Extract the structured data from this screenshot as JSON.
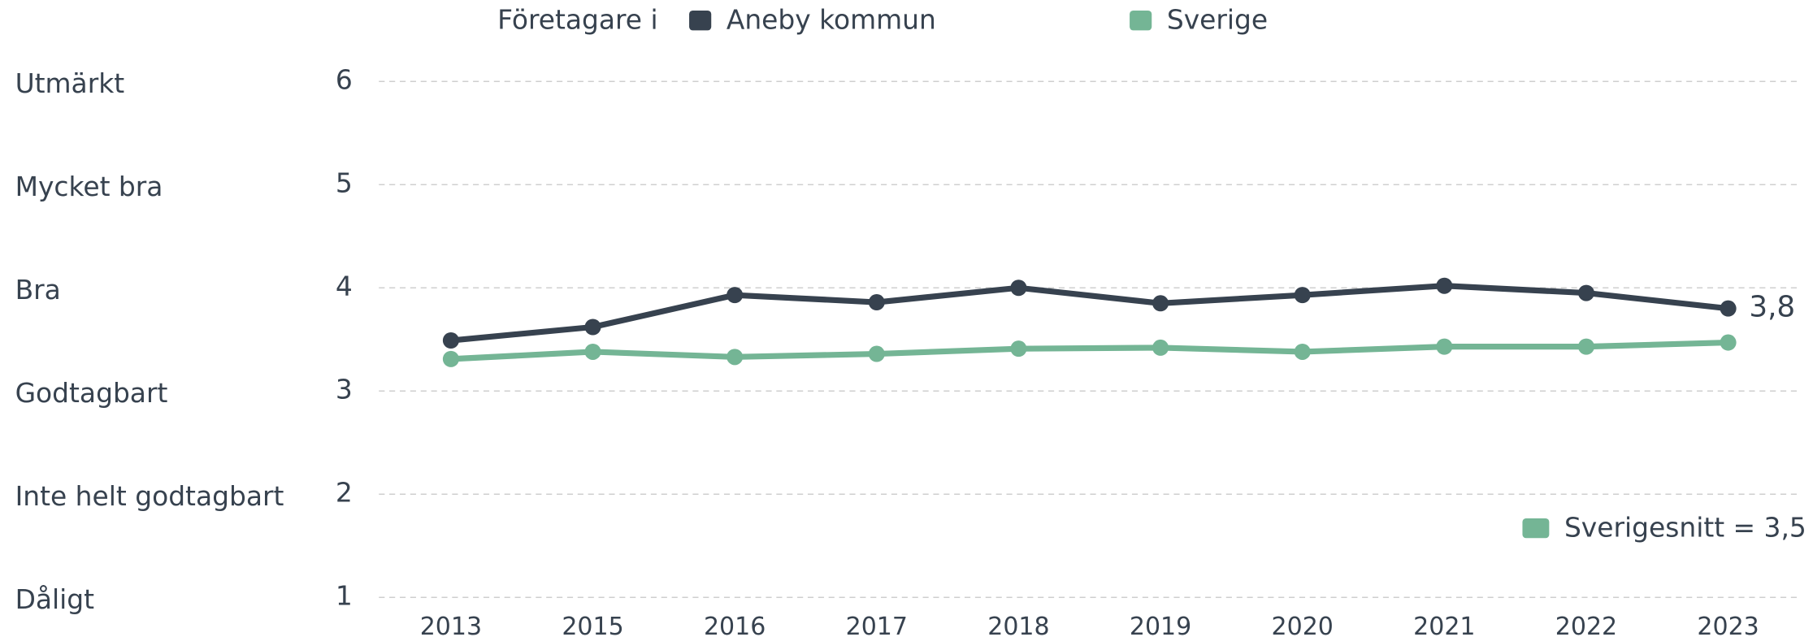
{
  "chart_data": {
    "type": "line",
    "legend_title": "Företagare i",
    "categories": [
      "2013",
      "2015",
      "2016",
      "2017",
      "2018",
      "2019",
      "2020",
      "2021",
      "2022",
      "2023"
    ],
    "series": [
      {
        "name": "Aneby kommun",
        "color": "#37424f",
        "values": [
          3.49,
          3.62,
          3.93,
          3.86,
          4.0,
          3.85,
          3.93,
          4.02,
          3.95,
          3.8
        ],
        "value_labels": [
          null,
          null,
          null,
          null,
          null,
          null,
          null,
          null,
          null,
          "3,8"
        ]
      },
      {
        "name": "Sverige",
        "color": "#74b595",
        "values": [
          3.31,
          3.38,
          3.33,
          3.36,
          3.41,
          3.42,
          3.38,
          3.43,
          3.43,
          3.47
        ]
      }
    ],
    "ylim": [
      1,
      6
    ],
    "yticks": [
      1,
      2,
      3,
      4,
      5,
      6
    ],
    "ytick_names": [
      "Dåligt",
      "Inte helt godtagbart",
      "Godtagbart",
      "Bra",
      "Mycket bra",
      "Utmärkt"
    ],
    "grid": true,
    "annotation": "Sverigesnitt = 3,5",
    "annotation_color": "#74b595"
  }
}
